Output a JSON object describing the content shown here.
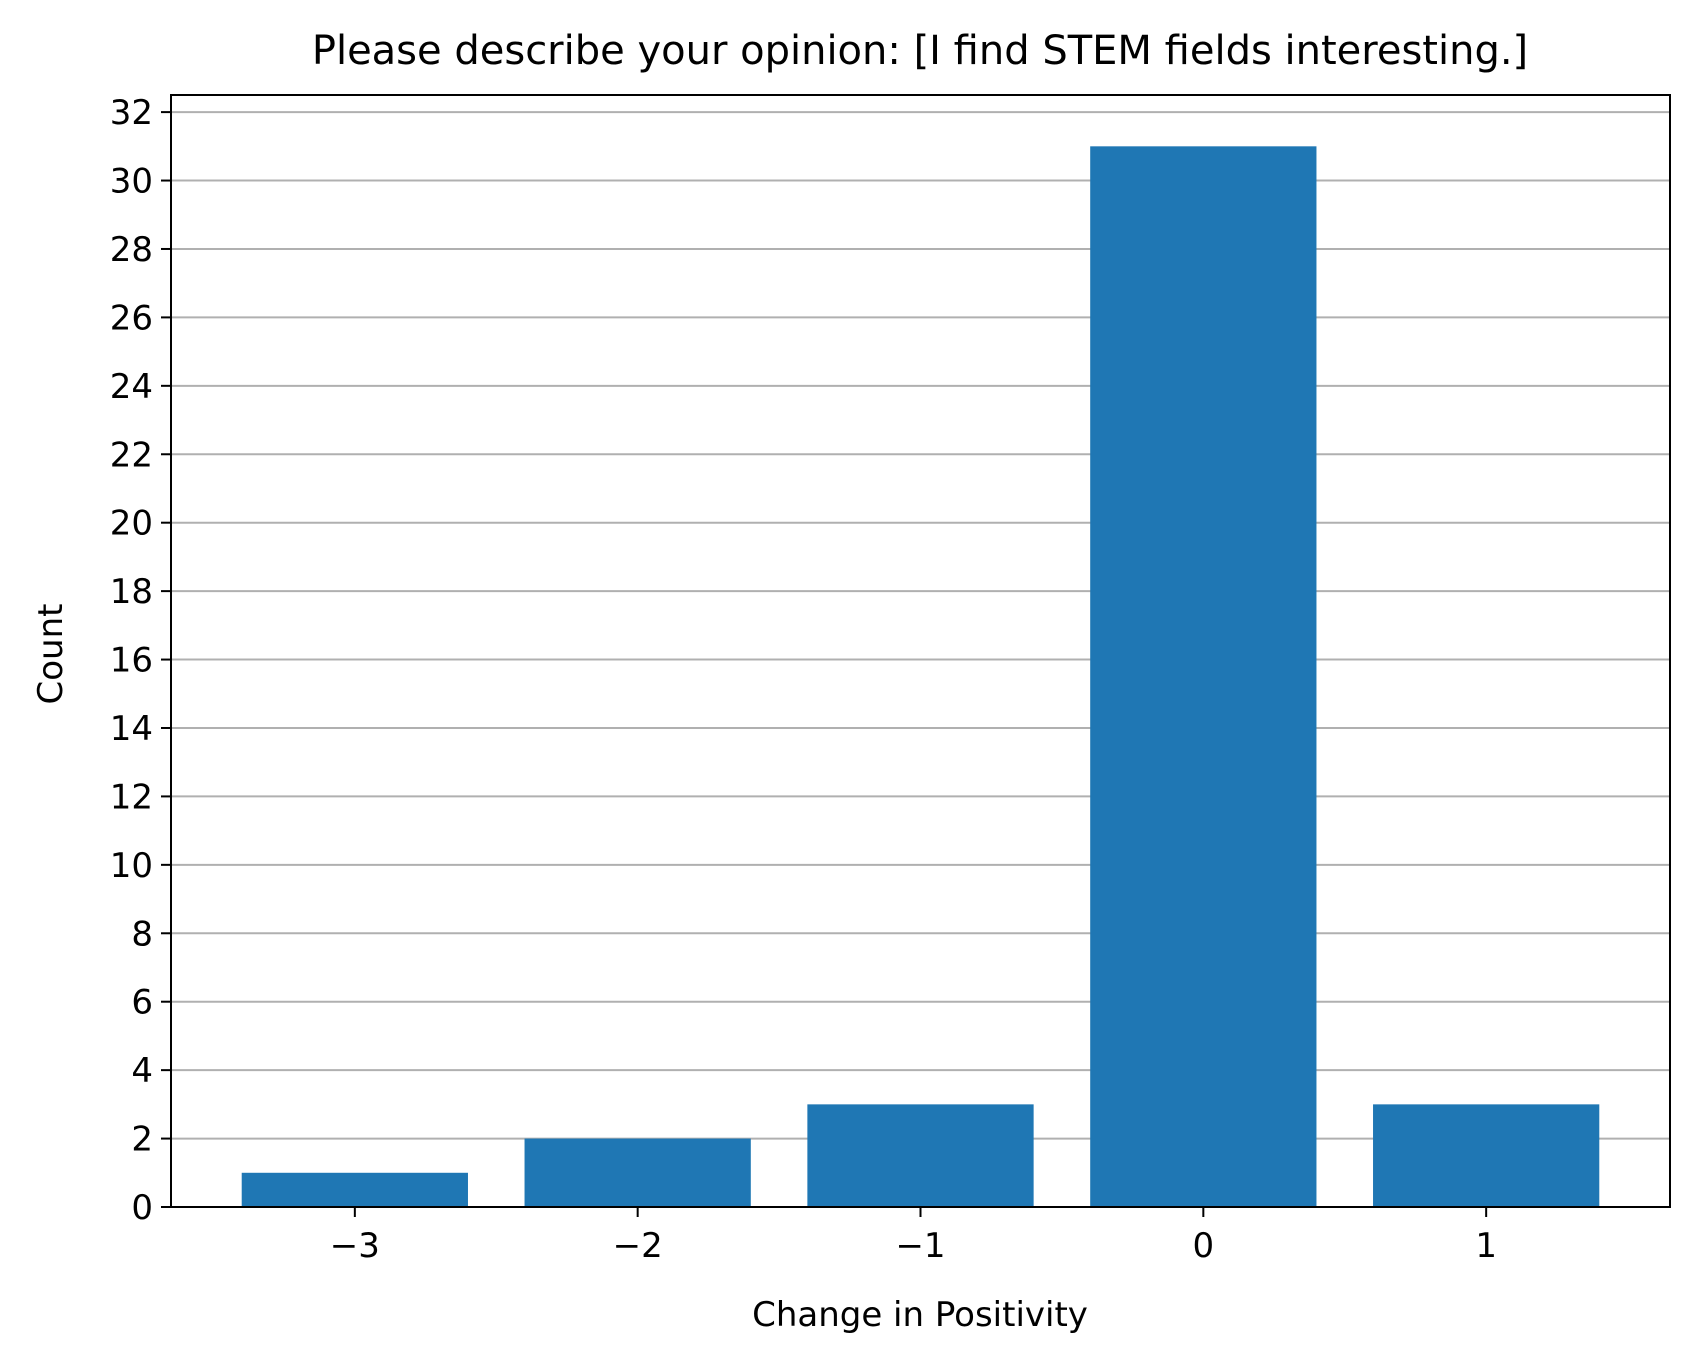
{
  "chart_data": {
    "type": "bar",
    "title": "Please describe your opinion: [I find STEM fields interesting.]",
    "xlabel": "Change in Positivity",
    "ylabel": "Count",
    "categories": [
      -3,
      -2,
      -1,
      0,
      1
    ],
    "category_labels": [
      "−3",
      "−2",
      "−1",
      "0",
      "1"
    ],
    "values": [
      1,
      2,
      3,
      31,
      3
    ],
    "ylim": [
      0,
      32.5
    ],
    "yticks": [
      0,
      2,
      4,
      6,
      8,
      10,
      12,
      14,
      16,
      18,
      20,
      22,
      24,
      26,
      28,
      30,
      32
    ],
    "xlim": [
      -3.65,
      1.65
    ],
    "grid": "y-major",
    "bar_color": "#1f77b4",
    "grid_color": "#b0b0b0"
  }
}
